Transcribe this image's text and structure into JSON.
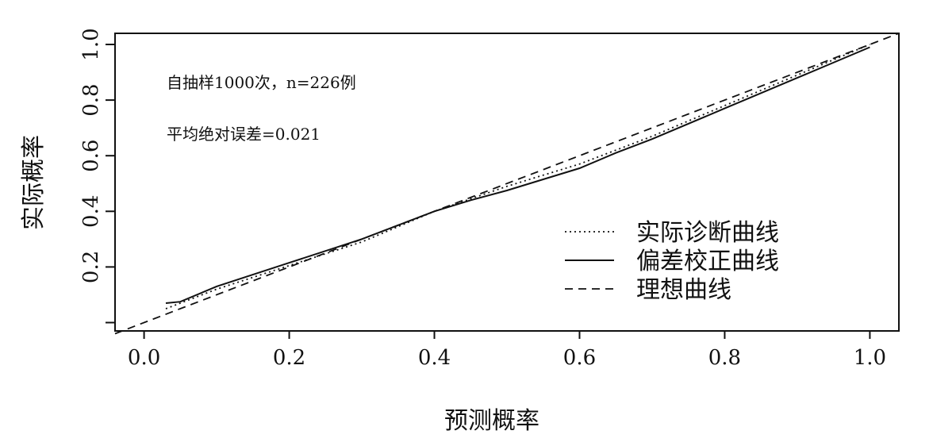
{
  "chart_data": {
    "type": "line",
    "title": "",
    "xlabel": "预测概率",
    "ylabel": "实际概率",
    "xlim": [
      -0.04,
      1.04
    ],
    "ylim": [
      -0.03,
      1.04
    ],
    "xticks": [
      0.0,
      0.2,
      0.4,
      0.6,
      0.8,
      1.0
    ],
    "xtick_labels": [
      "0.0",
      "0.2",
      "0.4",
      "0.6",
      "0.8",
      "1.0"
    ],
    "yticks": [
      0.0,
      0.2,
      0.4,
      0.6,
      0.8,
      1.0
    ],
    "ytick_labels": [
      "",
      "0.2",
      "0.4",
      "0.6",
      "0.8",
      "1.0"
    ],
    "grid": false,
    "legend_position": "bottom-right",
    "annotations": [
      "自抽样1000次，n=226例",
      "平均绝对误差=0.021"
    ],
    "series": [
      {
        "name": "实际诊断曲线",
        "style": "dotted",
        "x": [
          0.03,
          0.1,
          0.2,
          0.3,
          0.4,
          0.45,
          0.5,
          0.55,
          0.6,
          0.65,
          0.7,
          0.8,
          0.9,
          1.0
        ],
        "y": [
          0.05,
          0.12,
          0.205,
          0.29,
          0.4,
          0.445,
          0.49,
          0.53,
          0.57,
          0.62,
          0.67,
          0.78,
          0.89,
          1.0
        ]
      },
      {
        "name": "偏差校正曲线",
        "style": "solid",
        "x": [
          0.03,
          0.05,
          0.1,
          0.2,
          0.3,
          0.4,
          0.45,
          0.5,
          0.55,
          0.6,
          0.65,
          0.7,
          0.8,
          0.9,
          1.0
        ],
        "y": [
          0.07,
          0.075,
          0.13,
          0.215,
          0.3,
          0.4,
          0.44,
          0.475,
          0.515,
          0.555,
          0.61,
          0.66,
          0.77,
          0.88,
          0.99
        ]
      },
      {
        "name": "理想曲线",
        "style": "dashed",
        "x": [
          -0.04,
          1.04
        ],
        "y": [
          -0.04,
          1.04
        ]
      }
    ]
  }
}
